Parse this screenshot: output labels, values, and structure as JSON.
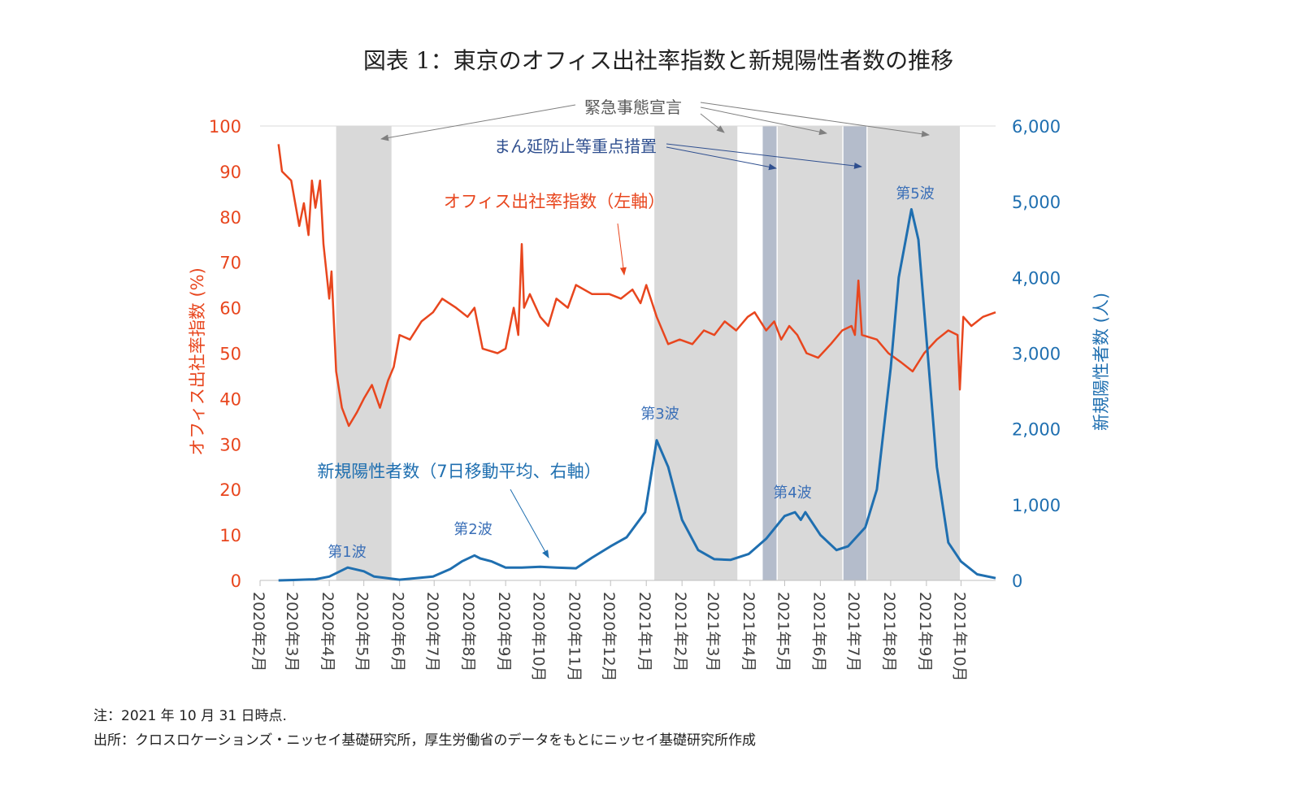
{
  "chart_data": {
    "type": "line",
    "title": "図表 1：東京のオフィス出社率指数と新規陽性者数の推移",
    "ylabel_left": "オフィス出社率指数 (%)",
    "ylabel_right": "新規陽性者数 (人)",
    "ylim_left": [
      0,
      100
    ],
    "ylim_right": [
      0,
      6000
    ],
    "yticks_left": [
      "0",
      "10",
      "20",
      "30",
      "40",
      "50",
      "60",
      "70",
      "80",
      "90",
      "100"
    ],
    "yticks_right": [
      "0",
      "1,000",
      "2,000",
      "3,000",
      "4,000",
      "5,000",
      "6,000"
    ],
    "xlim": [
      "2020-02-01",
      "2021-10-31"
    ],
    "xticks": [
      {
        "date": "2020-02-01",
        "label": "2020年2月"
      },
      {
        "date": "2020-03-01",
        "label": "2020年3月"
      },
      {
        "date": "2020-04-01",
        "label": "2020年4月"
      },
      {
        "date": "2020-05-01",
        "label": "2020年5月"
      },
      {
        "date": "2020-06-01",
        "label": "2020年6月"
      },
      {
        "date": "2020-07-01",
        "label": "2020年7月"
      },
      {
        "date": "2020-08-01",
        "label": "2020年8月"
      },
      {
        "date": "2020-09-01",
        "label": "2020年9月"
      },
      {
        "date": "2020-10-01",
        "label": "2020年10月"
      },
      {
        "date": "2020-11-01",
        "label": "2020年11月"
      },
      {
        "date": "2020-12-01",
        "label": "2020年12月"
      },
      {
        "date": "2021-01-01",
        "label": "2021年1月"
      },
      {
        "date": "2021-02-01",
        "label": "2021年2月"
      },
      {
        "date": "2021-03-01",
        "label": "2021年3月"
      },
      {
        "date": "2021-04-01",
        "label": "2021年4月"
      },
      {
        "date": "2021-05-01",
        "label": "2021年5月"
      },
      {
        "date": "2021-06-01",
        "label": "2021年6月"
      },
      {
        "date": "2021-07-01",
        "label": "2021年7月"
      },
      {
        "date": "2021-08-01",
        "label": "2021年8月"
      },
      {
        "date": "2021-09-01",
        "label": "2021年9月"
      },
      {
        "date": "2021-10-01",
        "label": "2021年10月"
      }
    ],
    "periods": [
      {
        "type": "emergency",
        "start": "2020-04-07",
        "end": "2020-05-25"
      },
      {
        "type": "emergency",
        "start": "2021-01-08",
        "end": "2021-03-21"
      },
      {
        "type": "manbo",
        "start": "2021-04-12",
        "end": "2021-04-24"
      },
      {
        "type": "emergency",
        "start": "2021-04-25",
        "end": "2021-06-20"
      },
      {
        "type": "manbo",
        "start": "2021-06-21",
        "end": "2021-07-11"
      },
      {
        "type": "emergency",
        "start": "2021-07-12",
        "end": "2021-09-30"
      }
    ],
    "series": [
      {
        "name": "オフィス出社率指数（左軸）",
        "axis": "left",
        "color": "#e8461e",
        "points": [
          [
            "2020-02-17",
            96
          ],
          [
            "2020-02-20",
            90
          ],
          [
            "2020-02-28",
            88
          ],
          [
            "2020-03-06",
            78
          ],
          [
            "2020-03-10",
            83
          ],
          [
            "2020-03-14",
            76
          ],
          [
            "2020-03-17",
            88
          ],
          [
            "2020-03-20",
            82
          ],
          [
            "2020-03-24",
            88
          ],
          [
            "2020-03-27",
            74
          ],
          [
            "2020-04-01",
            62
          ],
          [
            "2020-04-03",
            68
          ],
          [
            "2020-04-07",
            46
          ],
          [
            "2020-04-12",
            38
          ],
          [
            "2020-04-18",
            34
          ],
          [
            "2020-04-25",
            37
          ],
          [
            "2020-05-01",
            40
          ],
          [
            "2020-05-08",
            43
          ],
          [
            "2020-05-15",
            38
          ],
          [
            "2020-05-22",
            44
          ],
          [
            "2020-05-27",
            47
          ],
          [
            "2020-06-01",
            54
          ],
          [
            "2020-06-10",
            53
          ],
          [
            "2020-06-20",
            57
          ],
          [
            "2020-06-30",
            59
          ],
          [
            "2020-07-08",
            62
          ],
          [
            "2020-07-20",
            60
          ],
          [
            "2020-07-30",
            58
          ],
          [
            "2020-08-05",
            60
          ],
          [
            "2020-08-12",
            51
          ],
          [
            "2020-08-25",
            50
          ],
          [
            "2020-09-01",
            51
          ],
          [
            "2020-09-08",
            60
          ],
          [
            "2020-09-12",
            54
          ],
          [
            "2020-09-15",
            74
          ],
          [
            "2020-09-17",
            60
          ],
          [
            "2020-09-22",
            63
          ],
          [
            "2020-10-01",
            58
          ],
          [
            "2020-10-08",
            56
          ],
          [
            "2020-10-15",
            62
          ],
          [
            "2020-10-25",
            60
          ],
          [
            "2020-11-01",
            65
          ],
          [
            "2020-11-15",
            63
          ],
          [
            "2020-11-30",
            63
          ],
          [
            "2020-12-10",
            62
          ],
          [
            "2020-12-20",
            64
          ],
          [
            "2020-12-27",
            61
          ],
          [
            "2021-01-01",
            65
          ],
          [
            "2021-01-10",
            58
          ],
          [
            "2021-01-20",
            52
          ],
          [
            "2021-01-30",
            53
          ],
          [
            "2021-02-10",
            52
          ],
          [
            "2021-02-20",
            55
          ],
          [
            "2021-03-01",
            54
          ],
          [
            "2021-03-10",
            57
          ],
          [
            "2021-03-20",
            55
          ],
          [
            "2021-03-30",
            58
          ],
          [
            "2021-04-05",
            59
          ],
          [
            "2021-04-15",
            55
          ],
          [
            "2021-04-22",
            57
          ],
          [
            "2021-04-28",
            53
          ],
          [
            "2021-05-05",
            56
          ],
          [
            "2021-05-12",
            54
          ],
          [
            "2021-05-20",
            50
          ],
          [
            "2021-05-30",
            49
          ],
          [
            "2021-06-10",
            52
          ],
          [
            "2021-06-20",
            55
          ],
          [
            "2021-06-28",
            56
          ],
          [
            "2021-07-01",
            54
          ],
          [
            "2021-07-04",
            66
          ],
          [
            "2021-07-07",
            54
          ],
          [
            "2021-07-20",
            53
          ],
          [
            "2021-07-30",
            50
          ],
          [
            "2021-08-10",
            48
          ],
          [
            "2021-08-20",
            46
          ],
          [
            "2021-08-30",
            50
          ],
          [
            "2021-09-10",
            53
          ],
          [
            "2021-09-20",
            55
          ],
          [
            "2021-09-28",
            54
          ],
          [
            "2021-09-30",
            42
          ],
          [
            "2021-10-03",
            58
          ],
          [
            "2021-10-10",
            56
          ],
          [
            "2021-10-20",
            58
          ],
          [
            "2021-10-31",
            59
          ]
        ]
      },
      {
        "name": "新規陽性者数（7日移動平均、右軸）",
        "axis": "right",
        "color": "#1f6fb0",
        "points": [
          [
            "2020-02-17",
            0
          ],
          [
            "2020-03-01",
            5
          ],
          [
            "2020-03-20",
            15
          ],
          [
            "2020-04-01",
            50
          ],
          [
            "2020-04-17",
            170
          ],
          [
            "2020-05-01",
            120
          ],
          [
            "2020-05-10",
            50
          ],
          [
            "2020-06-01",
            10
          ],
          [
            "2020-06-30",
            50
          ],
          [
            "2020-07-15",
            150
          ],
          [
            "2020-07-25",
            250
          ],
          [
            "2020-08-05",
            330
          ],
          [
            "2020-08-10",
            290
          ],
          [
            "2020-08-20",
            250
          ],
          [
            "2020-09-01",
            170
          ],
          [
            "2020-09-15",
            170
          ],
          [
            "2020-10-01",
            180
          ],
          [
            "2020-10-15",
            170
          ],
          [
            "2020-11-01",
            160
          ],
          [
            "2020-11-15",
            300
          ],
          [
            "2020-12-01",
            450
          ],
          [
            "2020-12-15",
            570
          ],
          [
            "2020-12-31",
            900
          ],
          [
            "2021-01-10",
            1850
          ],
          [
            "2021-01-20",
            1500
          ],
          [
            "2021-02-01",
            800
          ],
          [
            "2021-02-15",
            400
          ],
          [
            "2021-03-01",
            280
          ],
          [
            "2021-03-15",
            270
          ],
          [
            "2021-03-31",
            350
          ],
          [
            "2021-04-15",
            550
          ],
          [
            "2021-05-01",
            850
          ],
          [
            "2021-05-10",
            900
          ],
          [
            "2021-05-15",
            800
          ],
          [
            "2021-05-19",
            900
          ],
          [
            "2021-06-01",
            600
          ],
          [
            "2021-06-15",
            400
          ],
          [
            "2021-06-25",
            450
          ],
          [
            "2021-07-10",
            700
          ],
          [
            "2021-07-20",
            1200
          ],
          [
            "2021-08-01",
            2800
          ],
          [
            "2021-08-08",
            4000
          ],
          [
            "2021-08-19",
            4900
          ],
          [
            "2021-08-25",
            4500
          ],
          [
            "2021-09-01",
            3200
          ],
          [
            "2021-09-10",
            1500
          ],
          [
            "2021-09-20",
            500
          ],
          [
            "2021-10-01",
            250
          ],
          [
            "2021-10-15",
            80
          ],
          [
            "2021-10-31",
            30
          ]
        ]
      }
    ],
    "annotations": {
      "emergency": "緊急事態宣言",
      "manbo": "まん延防止等重点措置",
      "office_label": "オフィス出社率指数（左軸）",
      "cases_label": "新規陽性者数（7日移動平均、右軸）",
      "waves": [
        "第1波",
        "第2波",
        "第3波",
        "第4波",
        "第5波"
      ]
    },
    "colors": {
      "office": "#e8461e",
      "cases": "#1f6fb0",
      "wave": "#3a6fb7",
      "emergency": "#d9d9d9",
      "manbo": "#b4bccb"
    }
  },
  "notes": {
    "note": "注：2021 年 10 月 31 日時点.",
    "source": "出所：クロスロケーションズ・ニッセイ基礎研究所，厚生労働省のデータをもとにニッセイ基礎研究所作成"
  }
}
